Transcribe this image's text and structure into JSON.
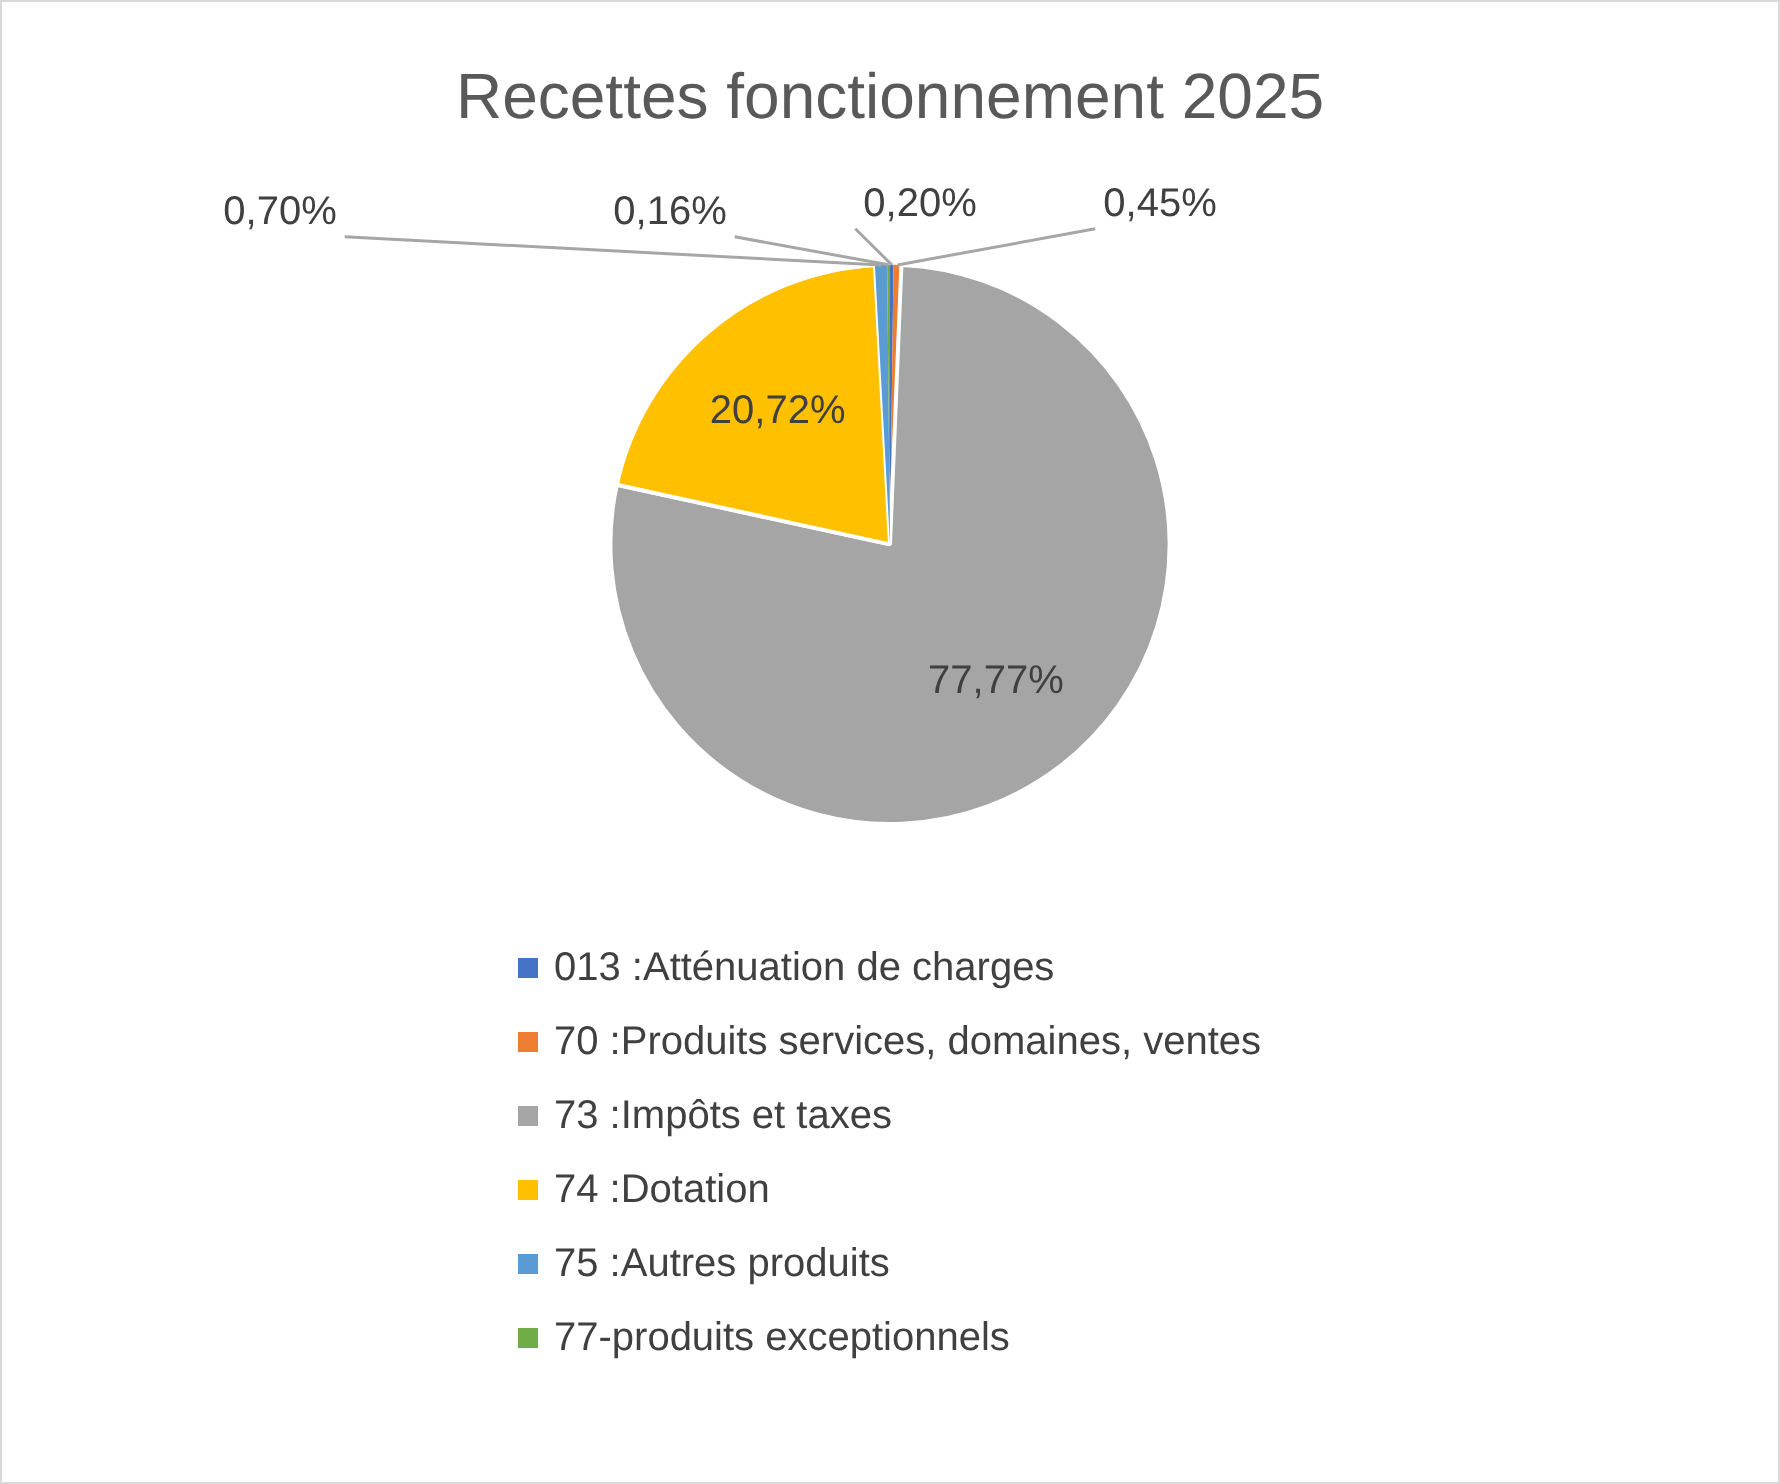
{
  "chart_data": {
    "type": "pie",
    "title": "Recettes fonctionnement 2025",
    "categories": [
      "013 :Atténuation de charges",
      "70 :Produits services, domaines, ventes",
      "73 :Impôts et taxes",
      "74 :Dotation",
      "75 :Autres produits",
      "77-produits exceptionnels"
    ],
    "values": [
      0.2,
      0.45,
      77.77,
      20.72,
      0.7,
      0.16
    ],
    "value_labels": [
      "0,20%",
      "0,45%",
      "77,77%",
      "20,72%",
      "0,70%",
      "0,16%"
    ],
    "colors": [
      "#4472c4",
      "#ed7d31",
      "#a5a5a5",
      "#ffc000",
      "#5b9bd5",
      "#70ad47"
    ],
    "legend": "bottom"
  }
}
